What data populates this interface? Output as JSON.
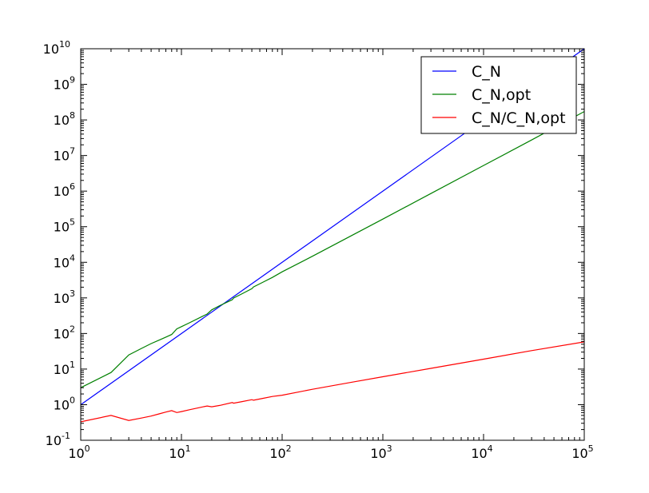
{
  "chart_data": {
    "type": "line",
    "title": "",
    "xlabel": "",
    "ylabel": "",
    "xscale": "log",
    "yscale": "log",
    "xlim": [
      1,
      100000
    ],
    "ylim": [
      0.1,
      10000000000
    ],
    "grid": false,
    "legend_position": "top-right",
    "x_tick_labels": [
      {
        "base": "10",
        "exp": "0"
      },
      {
        "base": "10",
        "exp": "1"
      },
      {
        "base": "10",
        "exp": "2"
      },
      {
        "base": "10",
        "exp": "3"
      },
      {
        "base": "10",
        "exp": "4"
      },
      {
        "base": "10",
        "exp": "5"
      }
    ],
    "y_tick_labels": [
      {
        "base": "10",
        "exp": "-1"
      },
      {
        "base": "10",
        "exp": "0"
      },
      {
        "base": "10",
        "exp": "1"
      },
      {
        "base": "10",
        "exp": "2"
      },
      {
        "base": "10",
        "exp": "3"
      },
      {
        "base": "10",
        "exp": "4"
      },
      {
        "base": "10",
        "exp": "5"
      },
      {
        "base": "10",
        "exp": "6"
      },
      {
        "base": "10",
        "exp": "7"
      },
      {
        "base": "10",
        "exp": "8"
      },
      {
        "base": "10",
        "exp": "9"
      },
      {
        "base": "10",
        "exp": "10"
      }
    ],
    "series": [
      {
        "name": "C_N",
        "color": "#0000ff",
        "x": [
          1,
          100000
        ],
        "y": [
          1,
          10000000000
        ]
      },
      {
        "name": "C_N,opt",
        "color": "#008000",
        "x": [
          1,
          2,
          3,
          4,
          5,
          6,
          7,
          8,
          9,
          10,
          12,
          16,
          18,
          20,
          24,
          32,
          33,
          40,
          50,
          52,
          64,
          80,
          100,
          200,
          500,
          1000,
          3000,
          10000,
          30000,
          100000
        ],
        "y": [
          3.0,
          8,
          25,
          38,
          52,
          65,
          79,
          94,
          135,
          156,
          200,
          298,
          352,
          460,
          606,
          890,
          990,
          1311,
          1812,
          2033,
          2731,
          3765,
          5405,
          14815,
          58140,
          163934,
          857143,
          5260000,
          27300000,
          172000000
        ]
      },
      {
        "name": "C_N/C_N,opt",
        "color": "#ff0000",
        "x": [
          1,
          2,
          3,
          4,
          5,
          6,
          7,
          8,
          9,
          10,
          12,
          16,
          18,
          20,
          24,
          32,
          33,
          40,
          50,
          52,
          64,
          80,
          100,
          200,
          500,
          1000,
          3000,
          10000,
          30000,
          100000
        ],
        "y": [
          0.33,
          0.5,
          0.36,
          0.42,
          0.48,
          0.55,
          0.62,
          0.68,
          0.6,
          0.64,
          0.72,
          0.86,
          0.92,
          0.87,
          0.95,
          1.15,
          1.1,
          1.22,
          1.38,
          1.33,
          1.5,
          1.7,
          1.85,
          2.7,
          4.3,
          6.1,
          10.5,
          19,
          33,
          58
        ]
      }
    ]
  }
}
